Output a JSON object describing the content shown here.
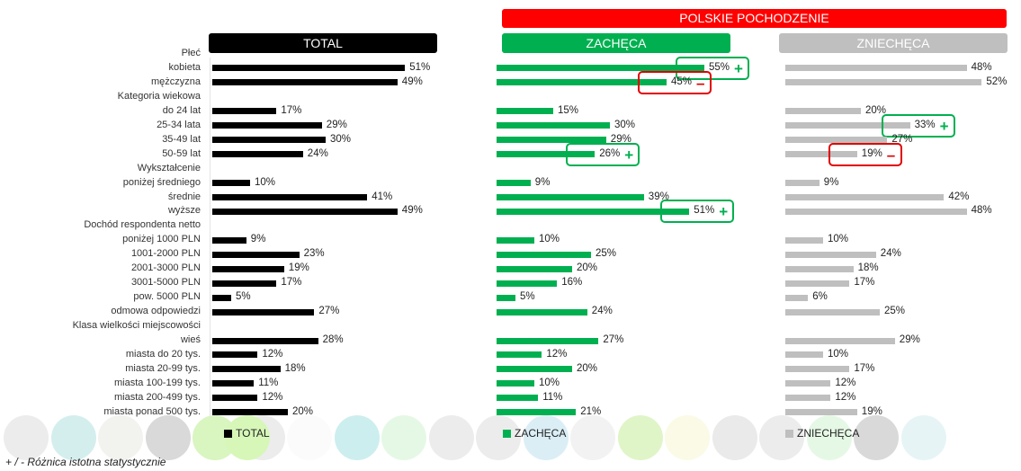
{
  "headers": {
    "group": "POLSKIE POCHODZENIE",
    "total": "TOTAL",
    "zacheca": "ZACHĘCA",
    "zniecheca": "ZNIECHĘCA"
  },
  "colors": {
    "total": "#000000",
    "zacheca": "#00b050",
    "zniecheca": "#bfbfbf",
    "group_header": "#ff0000",
    "positive": "#00b050",
    "negative": "#e00000"
  },
  "chart_data": {
    "type": "bar",
    "orientation": "horizontal",
    "xlim": [
      0,
      60
    ],
    "rows": [
      {
        "label": "Płeć",
        "section": true
      },
      {
        "label": "kobieta"
      },
      {
        "label": "mężczyzna"
      },
      {
        "label": "Kategoria wiekowa",
        "section": true
      },
      {
        "label": "do 24 lat"
      },
      {
        "label": "25-34 lata"
      },
      {
        "label": "35-49 lat"
      },
      {
        "label": "50-59 lat"
      },
      {
        "label": "Wykształcenie",
        "section": true
      },
      {
        "label": "poniżej średniego"
      },
      {
        "label": "średnie"
      },
      {
        "label": "wyższe"
      },
      {
        "label": "Dochód respondenta netto",
        "section": true
      },
      {
        "label": "poniżej 1000 PLN"
      },
      {
        "label": "1001-2000 PLN"
      },
      {
        "label": "2001-3000 PLN"
      },
      {
        "label": "3001-5000 PLN"
      },
      {
        "label": "pow. 5000 PLN"
      },
      {
        "label": "odmowa odpowiedzi"
      },
      {
        "label": "Klasa wielkości miejscowości",
        "section": true
      },
      {
        "label": "wieś"
      },
      {
        "label": "miasta do 20 tys."
      },
      {
        "label": "miasta 20-99 tys."
      },
      {
        "label": "miasta 100-199 tys."
      },
      {
        "label": "miasta 200-499 tys."
      },
      {
        "label": "miasta ponad 500 tys."
      }
    ],
    "series": [
      {
        "name": "TOTAL",
        "key": "total",
        "values": [
          null,
          51,
          49,
          null,
          17,
          29,
          30,
          24,
          null,
          10,
          41,
          49,
          null,
          9,
          23,
          19,
          17,
          5,
          27,
          null,
          28,
          12,
          18,
          11,
          12,
          20
        ],
        "significance": [
          null,
          null,
          null,
          null,
          null,
          null,
          null,
          null,
          null,
          null,
          null,
          null,
          null,
          null,
          null,
          null,
          null,
          null,
          null,
          null,
          null,
          null,
          null,
          null,
          null,
          null
        ]
      },
      {
        "name": "ZACHĘCA",
        "key": "zacheca",
        "values": [
          null,
          55,
          45,
          null,
          15,
          30,
          29,
          26,
          null,
          9,
          39,
          51,
          null,
          10,
          25,
          20,
          16,
          5,
          24,
          null,
          27,
          12,
          20,
          10,
          11,
          21
        ],
        "significance": [
          null,
          "+",
          "-",
          null,
          null,
          null,
          null,
          "+",
          null,
          null,
          null,
          "+",
          null,
          null,
          null,
          null,
          null,
          null,
          null,
          null,
          null,
          null,
          null,
          null,
          null,
          null
        ]
      },
      {
        "name": "ZNIECHĘCA",
        "key": "zniecheca",
        "values": [
          null,
          48,
          52,
          null,
          20,
          33,
          27,
          19,
          null,
          9,
          42,
          48,
          null,
          10,
          24,
          18,
          17,
          6,
          25,
          null,
          29,
          10,
          17,
          12,
          12,
          19
        ],
        "significance": [
          null,
          null,
          null,
          null,
          null,
          "+",
          null,
          "-",
          null,
          null,
          null,
          null,
          null,
          null,
          null,
          null,
          null,
          null,
          null,
          null,
          null,
          null,
          null,
          null,
          null,
          null
        ]
      }
    ],
    "value_suffix": "%",
    "legend": [
      "TOTAL",
      "ZACHĘCA",
      "ZNIECHĘCA"
    ],
    "legend_position": "bottom"
  },
  "footnote": "+ / - Różnica istotna statystycznie",
  "signs": {
    "plus": "+",
    "minus": "–"
  }
}
